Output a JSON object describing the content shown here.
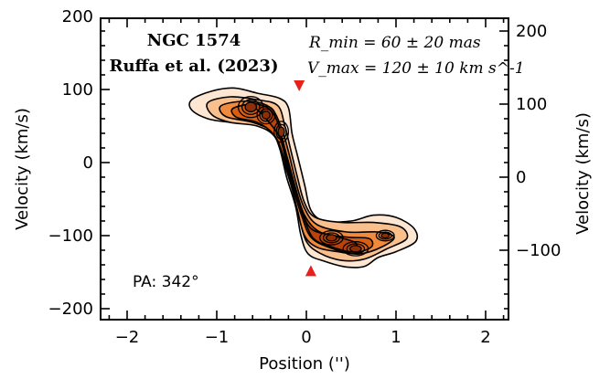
{
  "chart_data": {
    "type": "contour",
    "xlabel": "Position ('')",
    "ylabel_left": "Velocity (km/s)",
    "ylabel_right": "Velocity (km/s)",
    "xlim": [
      -2.3,
      2.3
    ],
    "ylim": [
      -225,
      225
    ],
    "x_ticks": [
      -2,
      -1,
      0,
      1,
      2
    ],
    "y_ticks_left": [
      -200,
      -100,
      0,
      100,
      200
    ],
    "y_ticks_right": [
      -100,
      0,
      100,
      200
    ],
    "right_axis_offset_kms": -20,
    "object_name": "NGC 1574",
    "reference": "Ruffa et al. (2023)",
    "param_rmin": "R_min = 60 ± 20 mas",
    "param_vmax": "V_max = 120 ± 10 km s^-1",
    "pa_label": "PA: 342°",
    "markers": [
      {
        "shape": "triangle-down",
        "x": -0.08,
        "y": 105,
        "color": "#e8201a"
      },
      {
        "shape": "triangle-up",
        "x": 0.05,
        "y": -148,
        "color": "#e8201a"
      }
    ],
    "contour_colors": [
      "#fde6d2",
      "#f9c08d",
      "#f08a3e",
      "#d95e14",
      "#b8430c"
    ],
    "contour_line_color": "#000000",
    "emission_ridge": [
      {
        "x": -1.05,
        "y": 75
      },
      {
        "x": -0.75,
        "y": 75
      },
      {
        "x": -0.5,
        "y": 68
      },
      {
        "x": -0.32,
        "y": 55
      },
      {
        "x": -0.18,
        "y": 15
      },
      {
        "x": -0.05,
        "y": -35
      },
      {
        "x": 0.05,
        "y": -80
      },
      {
        "x": 0.3,
        "y": -103
      },
      {
        "x": 0.6,
        "y": -115
      },
      {
        "x": 1.05,
        "y": -95
      }
    ]
  }
}
